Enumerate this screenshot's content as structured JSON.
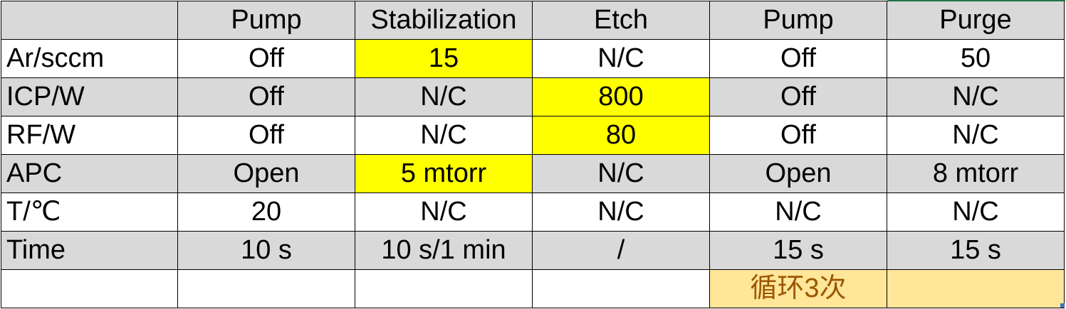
{
  "table": {
    "header": [
      "",
      "Pump",
      "Stabilization",
      "Etch",
      "Pump",
      "Purge"
    ],
    "rows": [
      {
        "label": "Ar/sccm",
        "cells": [
          "Off",
          "15",
          "N/C",
          "Off",
          "50"
        ]
      },
      {
        "label": "ICP/W",
        "cells": [
          "Off",
          "N/C",
          "800",
          "Off",
          "N/C"
        ]
      },
      {
        "label": "RF/W",
        "cells": [
          "Off",
          "N/C",
          "80",
          "Off",
          "N/C"
        ]
      },
      {
        "label": "APC",
        "cells": [
          "Open",
          "5 mtorr",
          "N/C",
          "Open",
          "8 mtorr"
        ]
      },
      {
        "label": "T/℃",
        "cells": [
          "20",
          "N/C",
          "N/C",
          "N/C",
          "N/C"
        ]
      },
      {
        "label": "Time",
        "cells": [
          "10 s",
          "10 s/1 min",
          "/",
          "15 s",
          "15 s"
        ]
      }
    ],
    "footer_note": "循环3次"
  },
  "colors": {
    "shaded_row": "#d9d9d9",
    "highlight": "#ffff00",
    "note_fill": "#ffe699",
    "note_text": "#9c5700"
  }
}
